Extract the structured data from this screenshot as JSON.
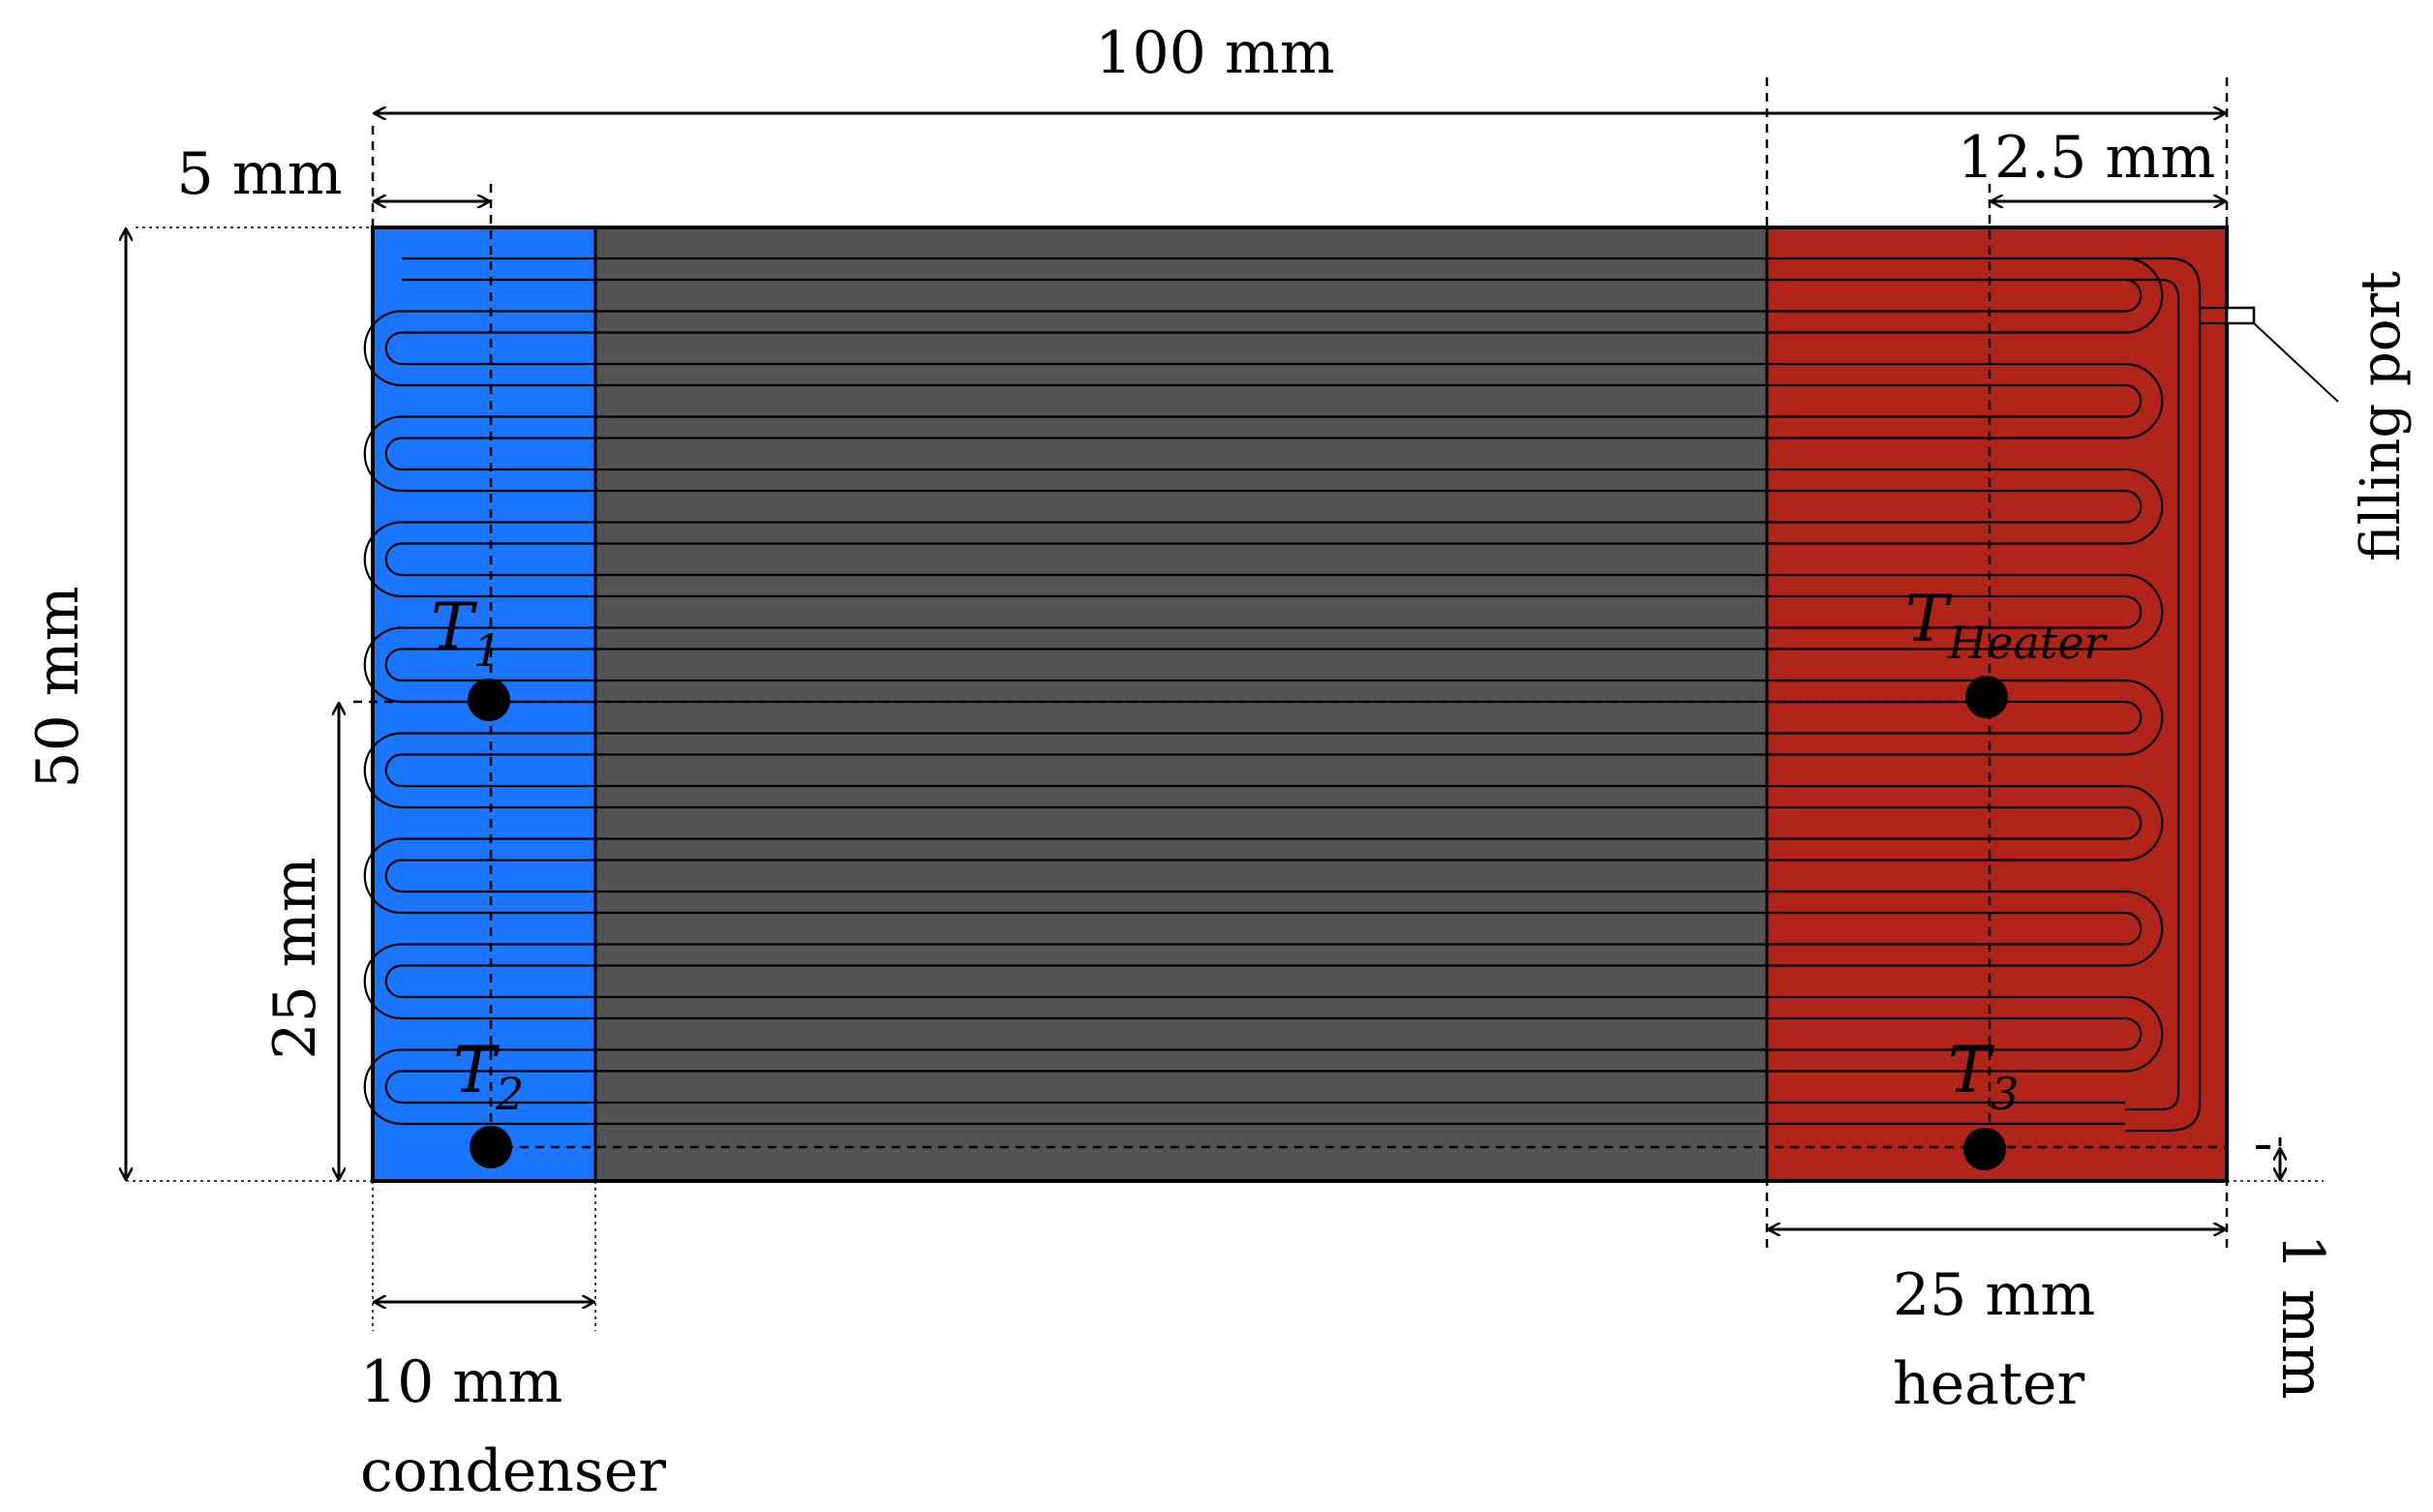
{
  "dimensions": {
    "total_length": "100 mm",
    "sensor_offset_left": "5 mm",
    "sensor_offset_right": "12.5 mm",
    "height": "50 mm",
    "sensor_height": "25 mm",
    "condenser_length": "10 mm",
    "heater_length": "25 mm",
    "wall_offset": "1 mm"
  },
  "zones": {
    "condenser_label": "condenser",
    "heater_label": "heater",
    "filling_port_label": "filling port"
  },
  "sensors": {
    "t1": {
      "base": "T",
      "sub": "1"
    },
    "t2": {
      "base": "T",
      "sub": "2"
    },
    "t3": {
      "base": "T",
      "sub": "3"
    },
    "theater": {
      "base": "T",
      "sub": "Heater"
    }
  },
  "colors": {
    "condenser": "#1a75ff",
    "adiabatic": "#545454",
    "heater": "#b0241a",
    "outline": "#000000"
  }
}
